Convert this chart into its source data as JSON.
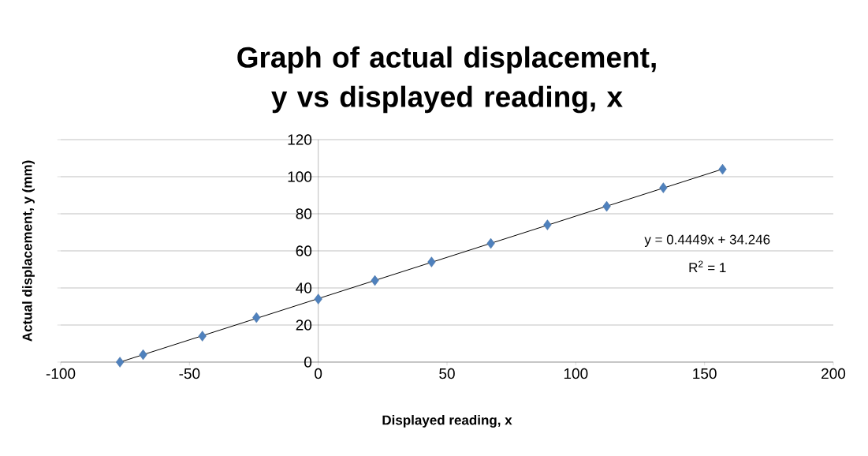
{
  "chart_data": {
    "type": "scatter",
    "title": "Graph of actual displacement, y vs displayed reading, x",
    "xlabel": "Displayed reading, x",
    "ylabel": "Actual displacement, y (mm)",
    "series": [
      {
        "color": "#4f81bd",
        "marker": "diamond",
        "x": [
          -77,
          -68,
          -45,
          -24,
          0,
          22,
          44,
          67,
          89,
          112,
          134,
          157
        ],
        "values": [
          0,
          4,
          14,
          24,
          34,
          44,
          54,
          64,
          74,
          84,
          94,
          104
        ]
      },
      {
        "type": "line",
        "marker": "none",
        "color": "#000000",
        "x": [
          -77,
          157
        ],
        "values": [
          0.0,
          104.1
        ]
      }
    ],
    "annotations": [
      "y = 0.4449x + 34.246",
      "R$^{2}$ = 1"
    ],
    "xlim": [
      -100,
      200
    ],
    "ylim": [
      0,
      120
    ],
    "xticks": [
      -100,
      -50,
      0,
      50,
      100,
      150,
      200
    ],
    "yticks": [
      0,
      20,
      40,
      60,
      80,
      100,
      120
    ],
    "grid": "y"
  }
}
